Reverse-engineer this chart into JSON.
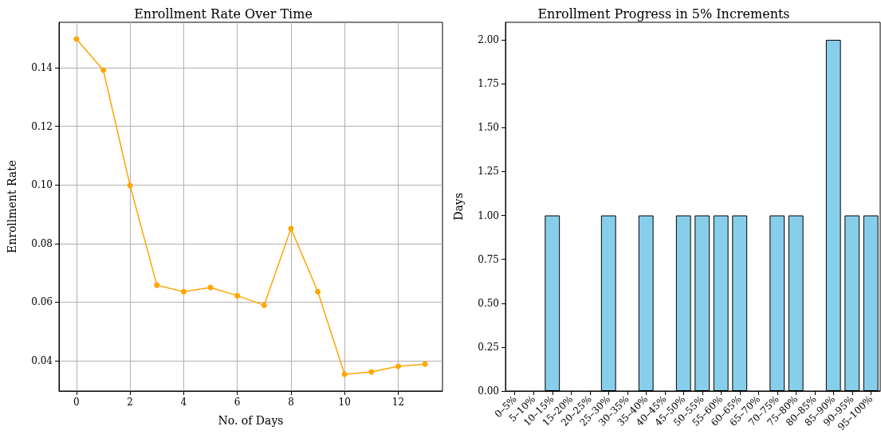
{
  "chart_data": [
    {
      "type": "line",
      "title": "Enrollment Rate Over Time",
      "xlabel": "No. of Days",
      "ylabel": "Enrollment Rate",
      "x": [
        0,
        1,
        2,
        3,
        4,
        5,
        6,
        7,
        8,
        9,
        10,
        11,
        12,
        13
      ],
      "series": [
        {
          "color": "#ffa500",
          "values": [
            0.1498,
            0.1392,
            0.0998,
            0.0658,
            0.0636,
            0.065,
            0.0622,
            0.059,
            0.0851,
            0.0636,
            0.0354,
            0.0362,
            0.0381,
            0.0389
          ]
        }
      ],
      "xlim": [
        -0.65,
        13.65
      ],
      "xticks": [
        0,
        2,
        4,
        6,
        8,
        10,
        12
      ],
      "ylim": [
        0.0297,
        0.1555
      ],
      "yticks": [
        {
          "value": 0.04,
          "label": "0.04"
        },
        {
          "value": 0.06,
          "label": "0.06"
        },
        {
          "value": 0.08,
          "label": "0.08"
        },
        {
          "value": 0.1,
          "label": "0.10"
        },
        {
          "value": 0.12,
          "label": "0.12"
        },
        {
          "value": 0.14,
          "label": "0.14"
        }
      ],
      "grid": true,
      "marker": "circle",
      "line_style": "solid"
    },
    {
      "type": "bar",
      "title": "Enrollment Progress in 5% Increments",
      "ylabel": "Days",
      "categories": [
        "0–5%",
        "5–10%",
        "10–15%",
        "15–20%",
        "20–25%",
        "25–30%",
        "30–35%",
        "35–40%",
        "40–45%",
        "45–50%",
        "50–55%",
        "55–60%",
        "60–65%",
        "65–70%",
        "70–75%",
        "75–80%",
        "80–85%",
        "85–90%",
        "90–95%",
        "95–100%"
      ],
      "series": [
        {
          "color": "#87ceeb",
          "values": [
            0,
            0,
            1,
            0,
            0,
            1,
            0,
            1,
            0,
            1,
            1,
            1,
            1,
            0,
            1,
            1,
            0,
            2,
            1,
            1
          ]
        }
      ],
      "ylim": [
        0,
        2.1
      ],
      "yticks": [
        {
          "value": 0,
          "label": "0.00"
        },
        {
          "value": 0.25,
          "label": "0.25"
        },
        {
          "value": 0.5,
          "label": "0.50"
        },
        {
          "value": 0.75,
          "label": "0.75"
        },
        {
          "value": 1,
          "label": "1.00"
        },
        {
          "value": 1.25,
          "label": "1.25"
        },
        {
          "value": 1.5,
          "label": "1.50"
        },
        {
          "value": 1.75,
          "label": "1.75"
        },
        {
          "value": 2,
          "label": "2.00"
        }
      ],
      "grid": false
    }
  ]
}
